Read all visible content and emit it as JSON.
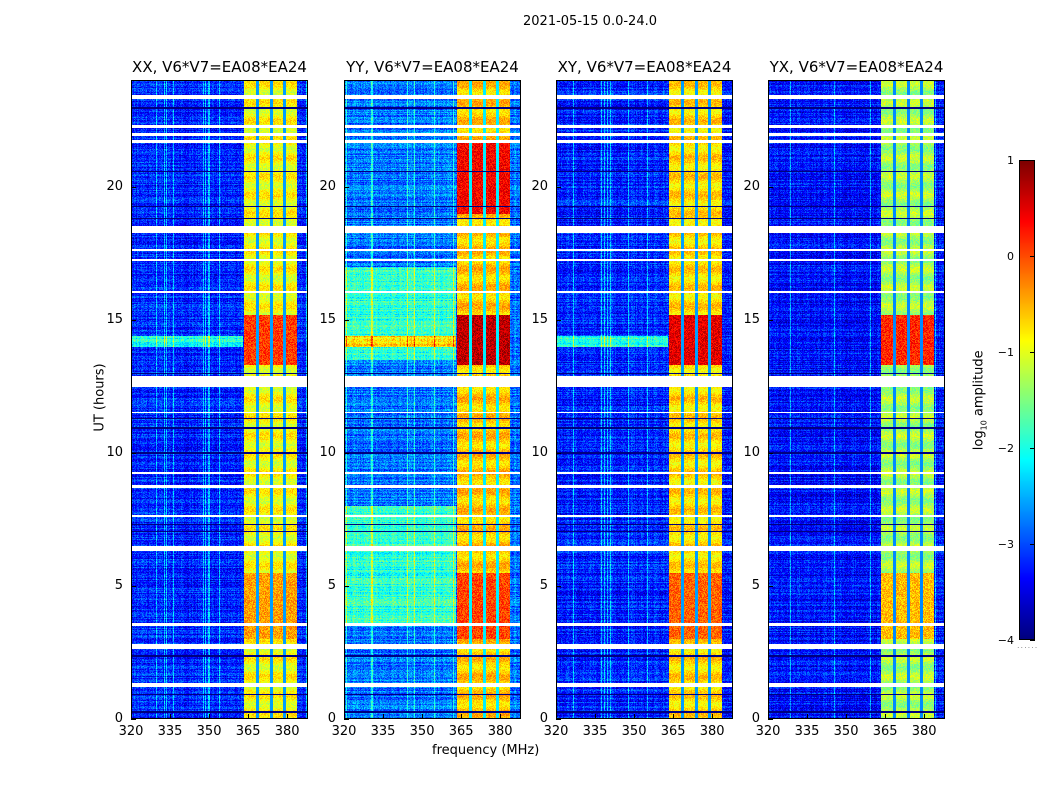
{
  "chart_data": {
    "type": "heatmap",
    "title": "2021-05-15 0.0-24.0",
    "xlabel": "frequency (MHz)",
    "ylabel": "UT (hours)",
    "xlim": [
      320,
      388
    ],
    "ylim": [
      0,
      24
    ],
    "xticks": [
      "320",
      "335",
      "350",
      "365",
      "380"
    ],
    "xtick_values": [
      320,
      335,
      350,
      365,
      380
    ],
    "yticks": [
      "0",
      "5",
      "10",
      "15",
      "20"
    ],
    "ytick_values": [
      0,
      5,
      10,
      15,
      20
    ],
    "colorbar": {
      "label_prefix": "log",
      "label_sub": "10",
      "label_suffix": " amplitude",
      "range": [
        -4,
        1
      ],
      "ticks": [
        "1",
        "0",
        "−1",
        "−2",
        "−3",
        "−4"
      ],
      "tick_values": [
        1,
        0,
        -1,
        -2,
        -3,
        -4
      ],
      "colormap": "jet"
    },
    "band_mhz": [
      363.5,
      384
    ],
    "band_dividers_mhz": [
      368.5,
      374,
      379
    ],
    "flagged_hours": [
      [
        23.35,
        23.5
      ],
      [
        22.25,
        22.35
      ],
      [
        21.95,
        22.05
      ],
      [
        21.7,
        21.78
      ],
      [
        18.3,
        18.55
      ],
      [
        17.6,
        17.7
      ],
      [
        17.25,
        17.32
      ],
      [
        16.05,
        16.12
      ],
      [
        12.5,
        12.9
      ],
      [
        11.5,
        11.55
      ],
      [
        9.2,
        9.3
      ],
      [
        8.7,
        8.8
      ],
      [
        7.6,
        7.65
      ],
      [
        6.3,
        6.5
      ],
      [
        3.5,
        3.58
      ],
      [
        2.6,
        2.8
      ],
      [
        1.2,
        1.35
      ]
    ],
    "dropout_hours": [
      23.0,
      20.6,
      19.3,
      18.85,
      13.0,
      11.3,
      10.95,
      10.0,
      7.3,
      7.05,
      2.35,
      0.9,
      0.25
    ],
    "panels": [
      {
        "title": "XX, V6*V7=EA08*EA24",
        "background_log_amp": -3.2,
        "band_log_amp": -0.9,
        "peak_log_amp": 0.1
      },
      {
        "title": "YY, V6*V7=EA08*EA24",
        "background_log_amp": -2.8,
        "band_log_amp": -0.6,
        "peak_log_amp": 0.7
      },
      {
        "title": "XY, V6*V7=EA08*EA24",
        "background_log_amp": -3.2,
        "band_log_amp": -0.7,
        "peak_log_amp": 0.5
      },
      {
        "title": "YX, V6*V7=EA08*EA24",
        "background_log_amp": -3.3,
        "band_log_amp": -1.3,
        "peak_log_amp": 0.2
      }
    ]
  }
}
